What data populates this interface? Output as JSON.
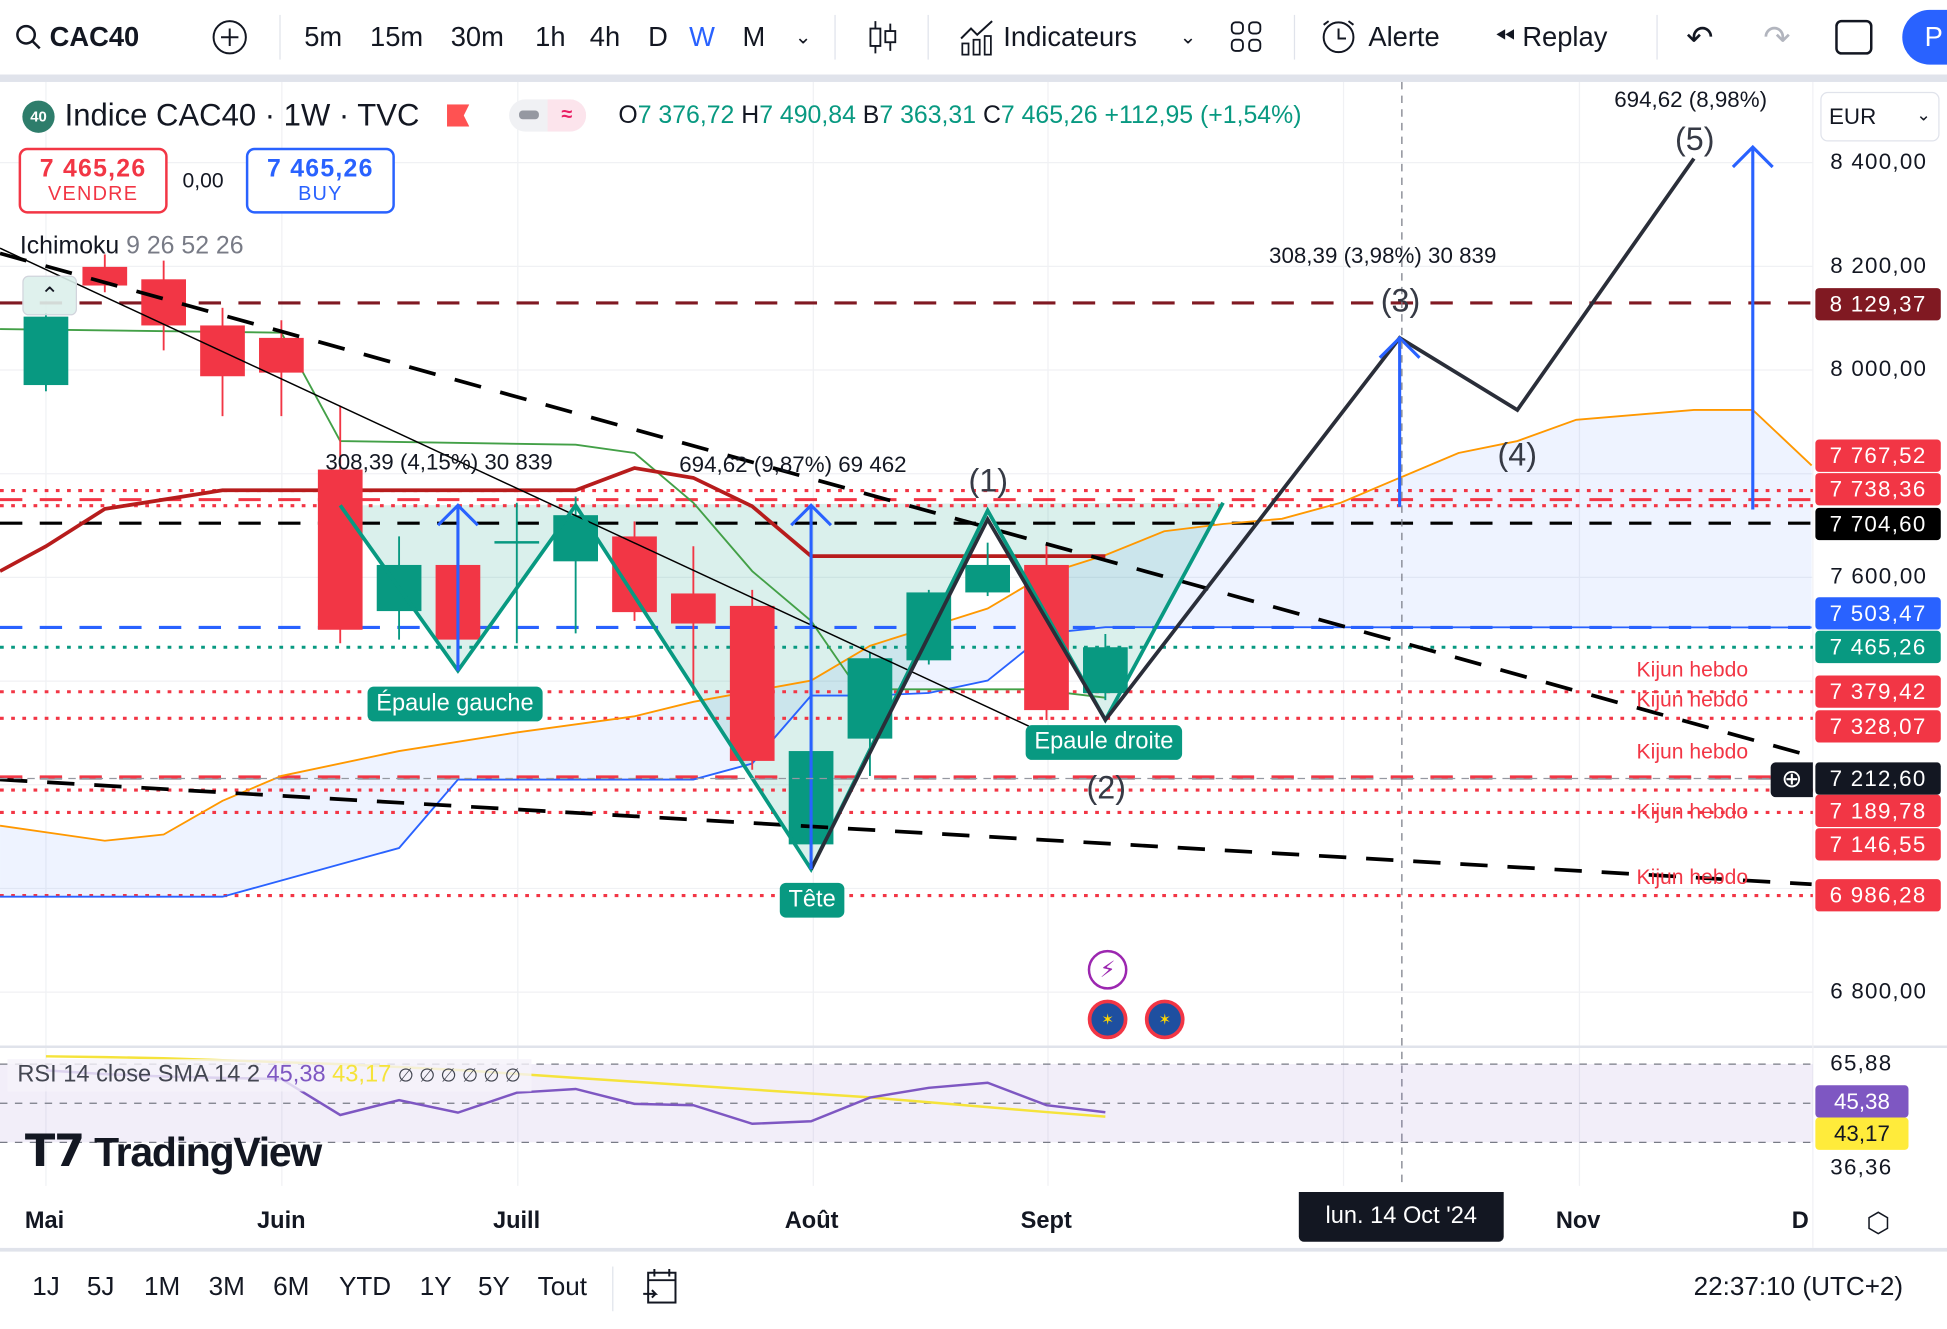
{
  "toolbar": {
    "symbol": "CAC40",
    "intervals": [
      "5m",
      "15m",
      "30m",
      "1h",
      "4h",
      "D",
      "W",
      "M"
    ],
    "active_interval": "W",
    "indicators": "Indicateurs",
    "alert": "Alerte",
    "replay": "Replay",
    "publish_partial": "P"
  },
  "legend": {
    "badge": "40",
    "title": "Indice CAC40 · 1W · TVC",
    "o_label": "O",
    "o": "7 376,72",
    "h_label": "H",
    "h": "7 490,84",
    "b_label": "B",
    "b": "7 363,31",
    "c_label": "C",
    "c": "7 465,26",
    "change": "+112,95 (+1,54%)"
  },
  "trade": {
    "sell_price": "7 465,26",
    "sell_label": "VENDRE",
    "spread": "0,00",
    "buy_price": "7 465,26",
    "buy_label": "BUY"
  },
  "indicator": {
    "name": "Ichimoku",
    "params": "9 26 52 26"
  },
  "currency": "EUR",
  "price_axis": [
    {
      "v": 8400,
      "t": "8 400,00"
    },
    {
      "v": 8200,
      "t": "8 200,00"
    },
    {
      "v": 8000,
      "t": "8 000,00"
    },
    {
      "v": 7600,
      "t": "7 600,00"
    },
    {
      "v": 6800,
      "t": "6 800,00"
    }
  ],
  "price_badges": [
    {
      "t": "8 129,37",
      "color": "#801922"
    },
    {
      "t": "7 767,52",
      "color": "#f23645"
    },
    {
      "t": "7 738,36",
      "color": "#f23645"
    },
    {
      "t": "7 704,60",
      "color": "#000000"
    },
    {
      "t": "7 503,47",
      "color": "#2962ff"
    },
    {
      "t": "7 465,26",
      "color": "#089981"
    },
    {
      "t": "7 379,42",
      "color": "#f23645"
    },
    {
      "t": "7 328,07",
      "color": "#f23645"
    },
    {
      "t": "7 212,60",
      "color": "#131722"
    },
    {
      "t": "7 189,78",
      "color": "#f23645"
    },
    {
      "t": "7 146,55",
      "color": "#f23645"
    },
    {
      "t": "6 986,28",
      "color": "#f23645"
    }
  ],
  "annotations": {
    "measure1": "308,39 (4,15%) 30 839",
    "measure2": "694,62 (9,87%) 69 462",
    "measure3": "308,39 (3,98%) 30 839",
    "measure4": "694,62 (8,98%)",
    "w1": "(1)",
    "w2": "(2)",
    "w3": "(3)",
    "w4": "(4)",
    "w5": "(5)",
    "left_shoulder": "Épaule gauche",
    "head": "Tête",
    "right_shoulder": "Epaule droite",
    "kijun": "Kijun hebdo"
  },
  "rsi": {
    "label": "RSI 14 close SMA 14 2",
    "value": "45,38",
    "sma": "43,17",
    "extra": "∅ ∅ ∅ ∅ ∅ ∅",
    "axis": [
      "65,88",
      "36,36"
    ],
    "badge_rsi": "45,38",
    "badge_sma": "43,17"
  },
  "time_axis": [
    "Mai",
    "Juin",
    "Juill",
    "Août",
    "Sept",
    "Nov",
    "D"
  ],
  "crosshair_date": "lun. 14 Oct '24",
  "bottom": {
    "ranges": [
      "1J",
      "5J",
      "1M",
      "3M",
      "6M",
      "YTD",
      "1Y",
      "5Y",
      "Tout"
    ],
    "clock": "22:37:10 (UTC+2)"
  },
  "logo": "TradingView",
  "colors": {
    "up": "#089981",
    "down": "#f23645",
    "accent": "#2962ff"
  },
  "chart_data": {
    "type": "candlestick",
    "title": "Indice CAC40 · 1W · TVC",
    "x_unit": "week index (0 = first week of Mai)",
    "candles": [
      [
        7971,
        8110,
        7959,
        8103
      ],
      [
        8199,
        8223,
        8150,
        8163
      ],
      [
        8175,
        8211,
        8038,
        8086
      ],
      [
        8086,
        8120,
        7911,
        7988
      ],
      [
        8062,
        8096,
        7911,
        7995
      ],
      [
        7808,
        7931,
        7473,
        7499
      ],
      [
        7535,
        7679,
        7480,
        7624
      ],
      [
        7624,
        7737,
        7475,
        7480
      ],
      [
        7668,
        7744,
        7473,
        7670
      ],
      [
        7631,
        7756,
        7492,
        7720
      ],
      [
        7679,
        7708,
        7516,
        7533
      ],
      [
        7569,
        7660,
        7372,
        7511
      ],
      [
        7545,
        7576,
        7229,
        7246
      ],
      [
        7085,
        7265,
        7037,
        7265
      ],
      [
        7289,
        7455,
        7217,
        7444
      ],
      [
        7440,
        7576,
        7432,
        7571
      ],
      [
        7571,
        7667,
        7564,
        7624
      ],
      [
        7624,
        7662,
        7325,
        7344
      ],
      [
        7376.72,
        7490.84,
        7363.31,
        7465.26
      ]
    ],
    "kijun": [
      [
        -0.78,
        7612
      ],
      [
        0,
        7660
      ],
      [
        1,
        7732
      ],
      [
        3,
        7768
      ],
      [
        9,
        7768
      ],
      [
        10,
        7811
      ],
      [
        11,
        7792
      ],
      [
        12,
        7737
      ],
      [
        13,
        7641
      ],
      [
        18,
        7641
      ]
    ],
    "chikou": [
      [
        -0.78,
        8079
      ],
      [
        4,
        8072
      ],
      [
        5,
        7863
      ],
      [
        9,
        7856
      ],
      [
        10,
        7840
      ],
      [
        11,
        7744
      ],
      [
        12,
        7612
      ],
      [
        13,
        7516
      ],
      [
        13.8,
        7384
      ],
      [
        16.8,
        7384
      ],
      [
        18,
        7368
      ]
    ],
    "senkou_a": [
      [
        -0.78,
        7121
      ],
      [
        1,
        7092
      ],
      [
        2,
        7104
      ],
      [
        3,
        7169
      ],
      [
        4,
        7217
      ],
      [
        6,
        7265
      ],
      [
        8,
        7301
      ],
      [
        10,
        7332
      ],
      [
        11,
        7360
      ],
      [
        13,
        7401
      ],
      [
        14,
        7468
      ],
      [
        15,
        7504
      ],
      [
        16,
        7540
      ],
      [
        17,
        7607
      ],
      [
        18,
        7643
      ],
      [
        19,
        7689
      ],
      [
        20,
        7703
      ],
      [
        21,
        7713
      ],
      [
        22,
        7744
      ],
      [
        23,
        7792
      ],
      [
        24,
        7840
      ],
      [
        25,
        7863
      ],
      [
        26,
        7904
      ],
      [
        28,
        7923
      ],
      [
        29,
        7923
      ],
      [
        30,
        7816
      ]
    ],
    "senkou_b": [
      [
        -0.78,
        6984
      ],
      [
        3,
        6984
      ],
      [
        6,
        7078
      ],
      [
        7,
        7210
      ],
      [
        9,
        7210
      ],
      [
        11,
        7210
      ],
      [
        12,
        7241
      ],
      [
        13,
        7372
      ],
      [
        14,
        7372
      ],
      [
        15,
        7377
      ],
      [
        16,
        7401
      ],
      [
        17,
        7492
      ],
      [
        18,
        7504
      ],
      [
        30,
        7503.47
      ]
    ],
    "levels": [
      {
        "p": 8129.37,
        "c": "#801922",
        "s": "dash"
      },
      {
        "p": 7767.52,
        "c": "#f23645",
        "s": "dot"
      },
      {
        "p": 7750,
        "c": "#f23645",
        "s": "dash"
      },
      {
        "p": 7738.36,
        "c": "#f23645",
        "s": "dot"
      },
      {
        "p": 7704.6,
        "c": "#000000",
        "s": "dash"
      },
      {
        "p": 7503.47,
        "c": "#2962ff",
        "s": "dash"
      },
      {
        "p": 7465.26,
        "c": "#089981",
        "s": "dot"
      },
      {
        "p": 7379.42,
        "c": "#f23645",
        "s": "dot"
      },
      {
        "p": 7328.07,
        "c": "#f23645",
        "s": "dot"
      },
      {
        "p": 7212.6,
        "c": "#9598a1",
        "s": "dash"
      },
      {
        "p": 7215,
        "c": "#f23645",
        "s": "dash"
      },
      {
        "p": 7189.78,
        "c": "#f23645",
        "s": "dot"
      },
      {
        "p": 7146.55,
        "c": "#f23645",
        "s": "dot"
      },
      {
        "p": 6986.28,
        "c": "#f23645",
        "s": "dot"
      }
    ],
    "trendlines": [
      {
        "a": [
          -0.78,
          8235
        ],
        "b": [
          16.7,
          7313
        ],
        "s": "solid"
      },
      {
        "a": [
          -0.78,
          8225
        ],
        "b": [
          30,
          7255
        ],
        "s": "dash"
      },
      {
        "a": [
          -0.78,
          7210
        ],
        "b": [
          30,
          7008
        ],
        "s": "dash"
      }
    ],
    "head_shoulders": [
      [
        5,
        7739
      ],
      [
        7,
        7420
      ],
      [
        9,
        7739
      ],
      [
        13,
        7037
      ],
      [
        16,
        7729
      ],
      [
        18,
        7325
      ],
      [
        20,
        7744
      ]
    ],
    "projection": [
      [
        13,
        7037
      ],
      [
        16,
        7712
      ],
      [
        18,
        7325
      ],
      [
        23,
        8062
      ],
      [
        25,
        7923
      ],
      [
        28,
        8408
      ]
    ],
    "arrows": [
      [
        7,
        7420,
        7739
      ],
      [
        13,
        7037,
        7739
      ],
      [
        23,
        7736,
        8062
      ],
      [
        29,
        7731,
        8430
      ]
    ],
    "rsi_values": [
      66.8,
      64.9,
      63.7,
      63,
      62.4,
      44,
      51.6,
      45.2,
      55.4,
      57.3,
      49.7,
      49,
      39.5,
      40.8,
      52.9,
      57.9,
      60.5,
      49,
      45.38
    ],
    "rsi_sma": [
      74,
      73.6,
      73,
      72,
      71,
      70,
      68.5,
      67,
      65,
      63,
      61,
      59,
      57,
      55,
      53,
      50.5,
      48,
      45.5,
      43.17
    ],
    "ylim": [
      6750,
      8450
    ]
  }
}
